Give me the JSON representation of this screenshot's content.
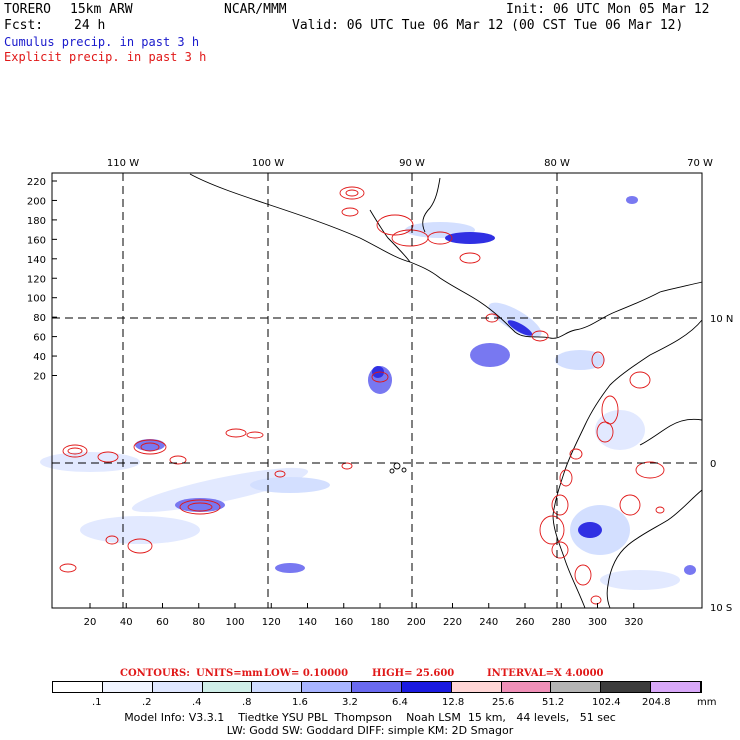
{
  "header": {
    "model_name": "TORERO",
    "resolution": "15km ARW",
    "org": "NCAR/MMM",
    "init": "Init: 06 UTC Mon 05 Mar 12",
    "fcst_label": "Fcst:",
    "fcst_value": "24 h",
    "valid": "Valid: 06 UTC Tue 06 Mar 12 (00 CST Tue 06 Mar 12)",
    "cumulus_label": "Cumulus precip. in past 3 h",
    "explicit_label": "Explicit precip. in past 3 h"
  },
  "map": {
    "top_lon_labels": [
      "110 W",
      "100 W",
      "90 W",
      "80 W",
      "70 W"
    ],
    "right_lat_labels": [
      "10 N",
      "0",
      "10 S"
    ],
    "y_ticks": [
      "220",
      "200",
      "180",
      "160",
      "140",
      "120",
      "100",
      "80",
      "60",
      "40",
      "20"
    ],
    "x_ticks": [
      "20",
      "40",
      "60",
      "80",
      "100",
      "120",
      "140",
      "160",
      "180",
      "200",
      "220",
      "240",
      "260",
      "280",
      "300",
      "320"
    ],
    "colors": {
      "coast": "#000000",
      "explicit": "#e01818",
      "cumulus_light": "#c8d4ff",
      "cumulus_mid": "#6a78f0",
      "cumulus_dark": "#1a1ae0"
    }
  },
  "contours_line": {
    "label": "CONTOURS:",
    "units": "UNITS=mm",
    "low": "LOW= 0.10000",
    "high": "HIGH= 25.600",
    "interval": "INTERVAL=X 4.0000"
  },
  "colorbar": {
    "labels": [
      ".1",
      ".2",
      ".4",
      ".8",
      "1.6",
      "3.2",
      "6.4",
      "12.8",
      "25.6",
      "51.2",
      "102.4",
      "204.8"
    ],
    "unit": "mm",
    "colors": [
      "#ffffff",
      "#f0f4ff",
      "#dfe7ff",
      "#cfeee8",
      "#cfdcff",
      "#a8b4ff",
      "#6a6af0",
      "#1a1ae0",
      "#ffd6d6",
      "#f090b8",
      "#b4b4b4",
      "#3c3c3c",
      "#d8a8f8"
    ]
  },
  "footer": {
    "line1": "Model Info: V3.3.1    Tiedtke YSU PBL  Thompson    Noah LSM  15 km,   44 levels,   51 sec",
    "line2": "LW: Godd SW: Goddard DIFF: simple KM: 2D Smagor"
  }
}
